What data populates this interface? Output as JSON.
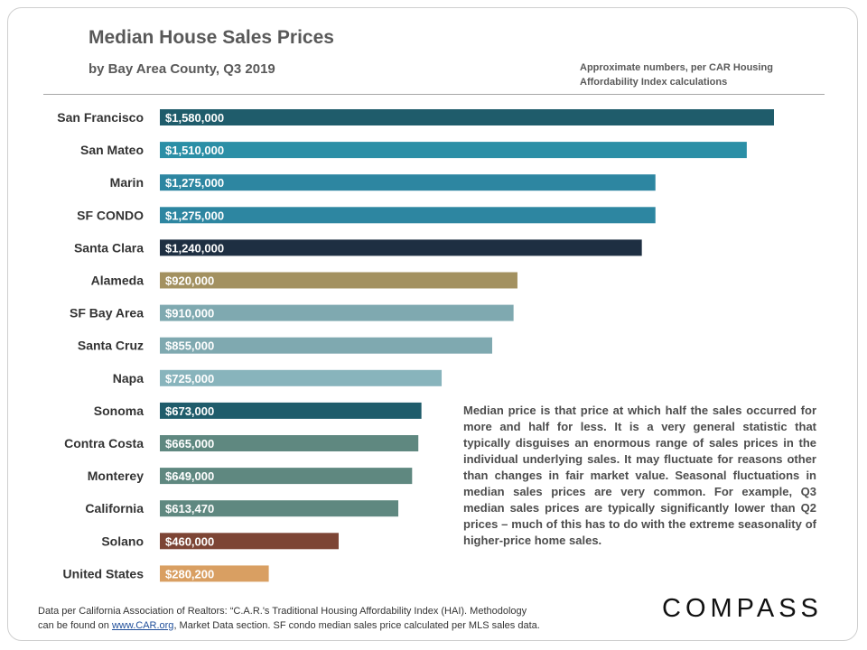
{
  "header": {
    "title": "Median House Sales Prices",
    "subtitle": "by Bay Area County, Q3 2019",
    "note_line1": "Approximate numbers, per CAR Housing",
    "note_line2": "Affordability Index calculations"
  },
  "description": "Median price is that price at which half the sales occurred for more and half for less. It is a very general statistic that typically disguises an enormous range of sales prices in the individual underlying sales. It may fluctuate for reasons other than changes in fair market value. Seasonal fluctuations in median sales prices are very common. For example, Q3 median sales prices are typically significantly lower than Q2 prices – much of this has to do with the extreme seasonality of higher-price home sales.",
  "footer": {
    "line1": "Data per California Association of Realtors: “C.A.R.'s Traditional Housing Affordability Index (HAI). Methodology",
    "line2_prefix": "can be found on ",
    "link": "www.CAR.org",
    "line2_suffix": ",  Market Data section. SF condo median sales price calculated per MLS sales data."
  },
  "logo": "COMPASS",
  "chart_data": {
    "type": "bar",
    "orientation": "horizontal",
    "title": "Median House Sales Prices",
    "subtitle": "by Bay Area County, Q3 2019",
    "xlim": [
      0,
      1600000
    ],
    "grid": false,
    "categories": [
      "San Francisco",
      "San Mateo",
      "Marin",
      "SF CONDO",
      "Santa Clara",
      "Alameda",
      "SF Bay Area",
      "Santa Cruz",
      "Napa",
      "Sonoma",
      "Contra Costa",
      "Monterey",
      "California",
      "Solano",
      "United States"
    ],
    "values": [
      1580000,
      1510000,
      1275000,
      1275000,
      1240000,
      920000,
      910000,
      855000,
      725000,
      673000,
      665000,
      649000,
      613470,
      460000,
      280200
    ],
    "labels": [
      "$1,580,000",
      "$1,510,000",
      "$1,275,000",
      "$1,275,000",
      "$1,240,000",
      "$920,000",
      "$910,000",
      "$855,000",
      "$725,000",
      "$673,000",
      "$665,000",
      "$649,000",
      "$613,470",
      "$460,000",
      "$280,200"
    ],
    "colors": [
      "#1f5c6b",
      "#2b8fa6",
      "#2d86a1",
      "#2d86a1",
      "#1e2f42",
      "#a39160",
      "#7fa9b0",
      "#7fa9b0",
      "#88b4bc",
      "#1f5c6b",
      "#5f8880",
      "#5f8880",
      "#5f8880",
      "#7d4535",
      "#d99f62"
    ]
  }
}
